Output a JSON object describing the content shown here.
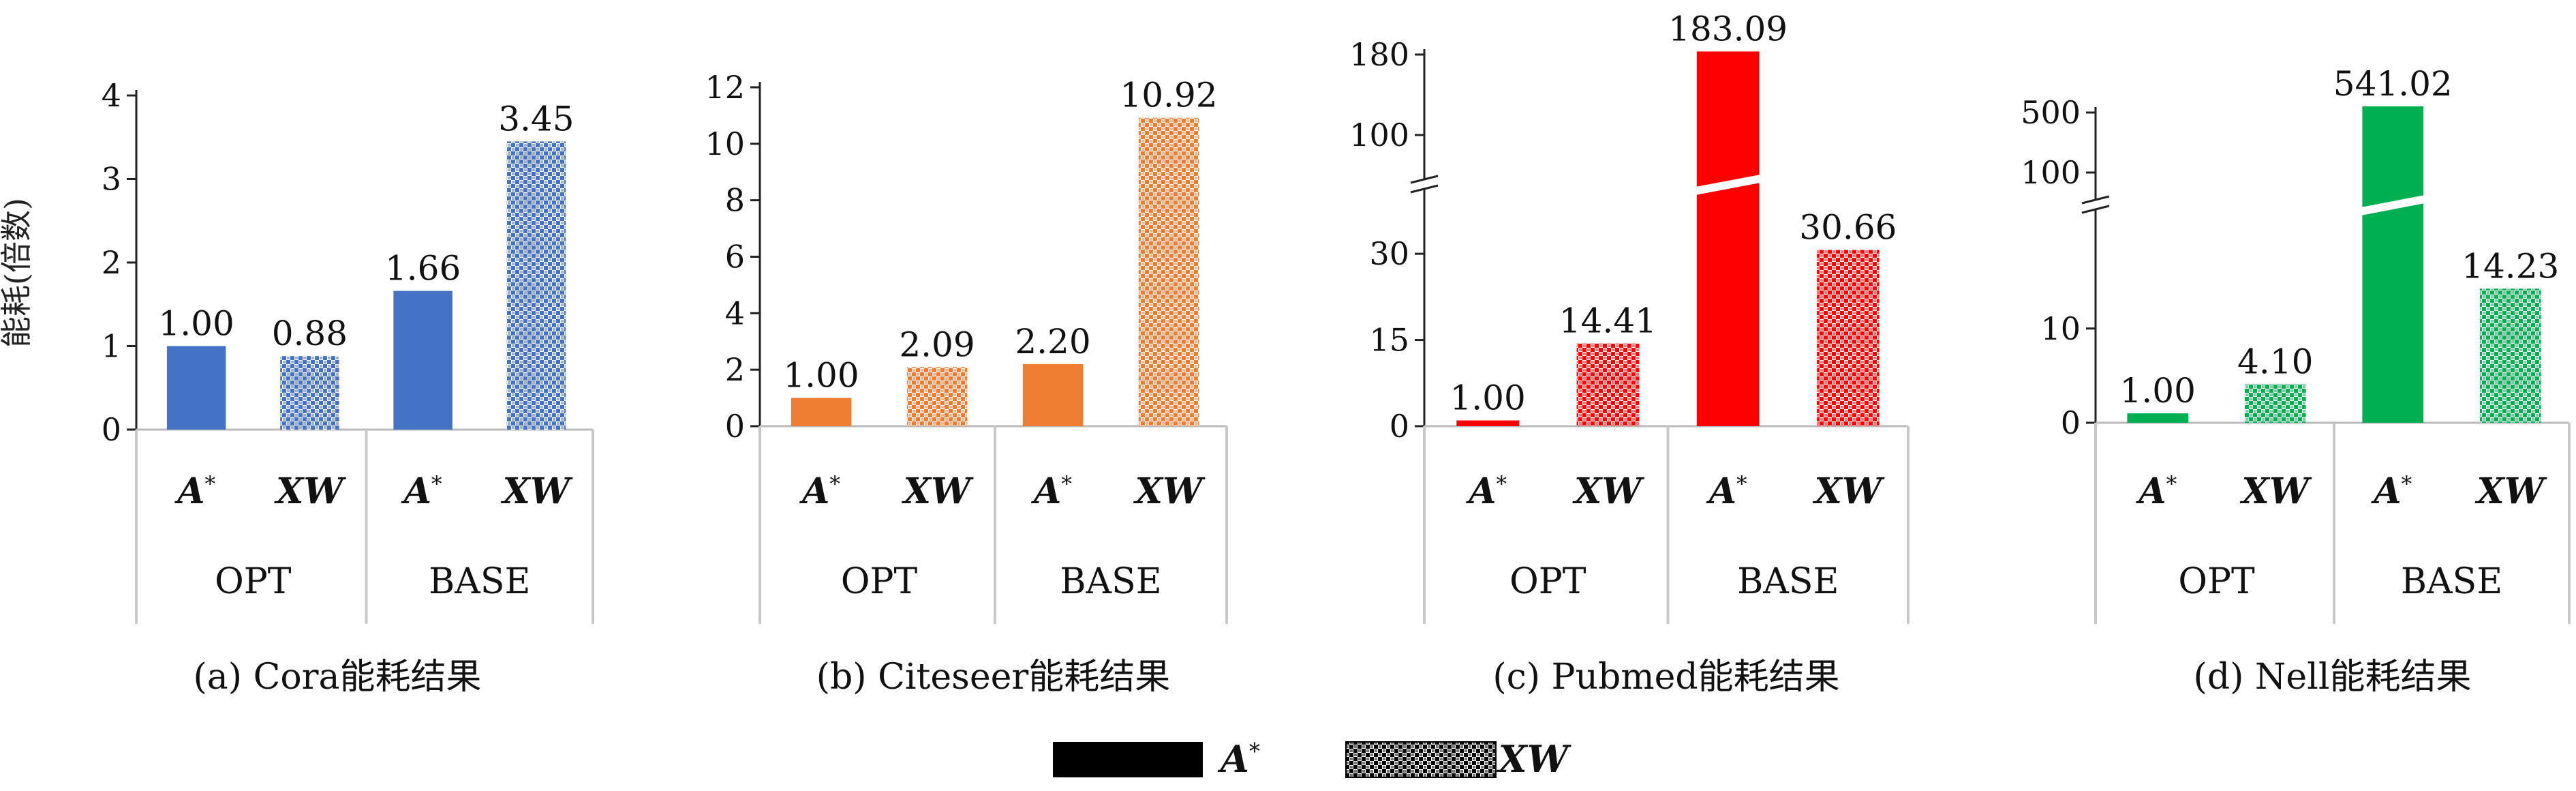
{
  "figure": {
    "ylabel": "能耗(倍数)",
    "legend": [
      {
        "name": "A*",
        "pattern": "solid"
      },
      {
        "name": "XW",
        "pattern": "checker"
      }
    ],
    "legend_placement": "bottom-center"
  },
  "chart_data": [
    {
      "type": "bar",
      "title": "(a) Cora能耗结果",
      "groups": [
        "OPT",
        "BASE"
      ],
      "categories": [
        "A*",
        "XW",
        "A*",
        "XW"
      ],
      "values": [
        1.0,
        0.88,
        1.66,
        3.45
      ],
      "labels": [
        "1.00",
        "0.88",
        "1.66",
        "3.45"
      ],
      "patterns": [
        "solid",
        "checker",
        "solid",
        "checker"
      ],
      "color": "#4472C4",
      "ylim": [
        0,
        4
      ],
      "yticks": [
        "0",
        "1",
        "2",
        "3",
        "4"
      ],
      "axis_break": false
    },
    {
      "type": "bar",
      "title": "(b) Citeseer能耗结果",
      "groups": [
        "OPT",
        "BASE"
      ],
      "categories": [
        "A*",
        "XW",
        "A*",
        "XW"
      ],
      "values": [
        1.0,
        2.09,
        2.2,
        10.92
      ],
      "labels": [
        "1.00",
        "2.09",
        "2.20",
        "10.92"
      ],
      "patterns": [
        "solid",
        "checker",
        "solid",
        "checker"
      ],
      "color": "#ED7D31",
      "ylim": [
        0,
        12
      ],
      "yticks": [
        "0",
        "2",
        "4",
        "6",
        "8",
        "10",
        "12"
      ],
      "axis_break": false
    },
    {
      "type": "bar",
      "title": "(c) Pubmed能耗结果",
      "groups": [
        "OPT",
        "BASE"
      ],
      "categories": [
        "A*",
        "XW",
        "A*",
        "XW"
      ],
      "values": [
        1.0,
        14.41,
        183.09,
        30.66
      ],
      "labels": [
        "1.00",
        "14.41",
        "183.09",
        "30.66"
      ],
      "patterns": [
        "solid",
        "checker",
        "solid",
        "checker"
      ],
      "color": "#FF0000",
      "yticks_lower": [
        "0",
        "15",
        "30"
      ],
      "yticks_upper": [
        "100",
        "180"
      ],
      "ylim_lower": [
        0,
        35
      ],
      "ylim_upper": [
        100,
        180
      ],
      "axis_break": true
    },
    {
      "type": "bar",
      "title": "(d) Nell能耗结果",
      "groups": [
        "OPT",
        "BASE"
      ],
      "categories": [
        "A*",
        "XW",
        "A*",
        "XW"
      ],
      "values": [
        1.0,
        4.1,
        541.02,
        14.23
      ],
      "labels": [
        "1.00",
        "4.10",
        "541.02",
        "14.23"
      ],
      "patterns": [
        "solid",
        "checker",
        "solid",
        "checker"
      ],
      "color": "#00B050",
      "yticks_lower": [
        "0",
        "10"
      ],
      "yticks_upper": [
        "100",
        "500"
      ],
      "ylim_lower": [
        0,
        17
      ],
      "ylim_upper": [
        100,
        500
      ],
      "axis_break": true
    }
  ]
}
